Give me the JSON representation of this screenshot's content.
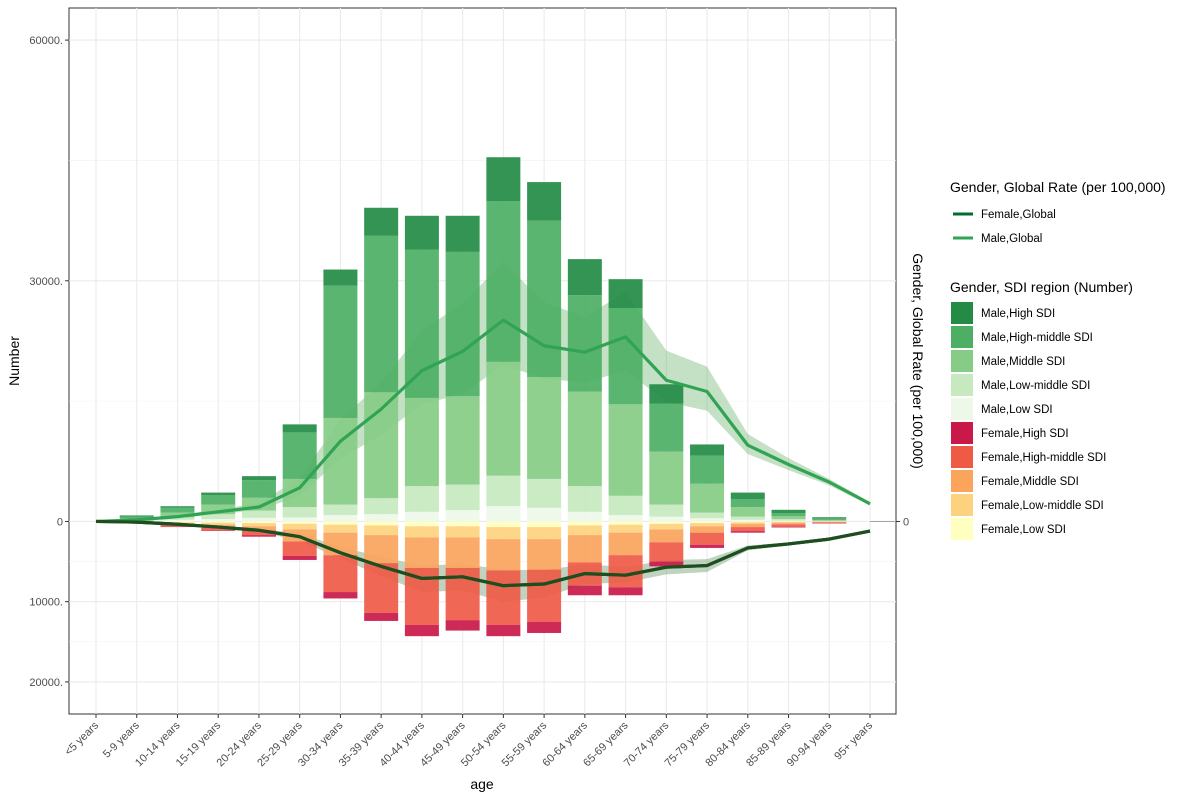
{
  "chart_data": {
    "type": "bar",
    "categories": [
      "<5 years",
      "5-9 years",
      "10-14 years",
      "15-19 years",
      "20-24 years",
      "25-29 years",
      "30-34 years",
      "35-39 years",
      "40-44 years",
      "45-49 years",
      "50-54 years",
      "55-59 years",
      "60-64 years",
      "65-69 years",
      "70-74 years",
      "75-79 years",
      "80-84 years",
      "85-89 years",
      "90-94 years",
      "95+ years"
    ],
    "xlabel": "age",
    "ylabel": "Number",
    "ylabel_right": "Gender, Global Rate (per 100,000)",
    "ylim": [
      -24000,
      64000
    ],
    "y_ticks": [
      {
        "value": 60000,
        "label": "60000."
      },
      {
        "value": 30000,
        "label": "30000."
      },
      {
        "value": 0,
        "label": "0"
      },
      {
        "value": -10000,
        "label": "10000."
      },
      {
        "value": -20000,
        "label": "20000."
      }
    ],
    "right_ticks": [
      {
        "value": 0,
        "label": "0"
      }
    ],
    "grid": true,
    "stack_series": [
      {
        "name": "Male,High SDI",
        "color": "#238b45",
        "sign": 1,
        "values": [
          0,
          150,
          200,
          300,
          500,
          1000,
          2000,
          3500,
          4200,
          4500,
          5500,
          4800,
          4500,
          3600,
          2400,
          1400,
          800,
          400,
          150,
          0
        ]
      },
      {
        "name": "Male,High-middle SDI",
        "color": "#4caf64",
        "sign": 1,
        "values": [
          0,
          250,
          600,
          1200,
          2200,
          5800,
          16500,
          19500,
          18500,
          18000,
          20000,
          19500,
          12000,
          12000,
          6000,
          3500,
          1000,
          400,
          200,
          0
        ]
      },
      {
        "name": "Male,Middle SDI",
        "color": "#86cc86",
        "sign": 1,
        "values": [
          0,
          200,
          600,
          1200,
          1600,
          3500,
          10800,
          13200,
          11000,
          11000,
          14200,
          12700,
          11800,
          11400,
          6600,
          3600,
          1200,
          350,
          100,
          0
        ]
      },
      {
        "name": "Male,Low-middle SDI",
        "color": "#c7e9c0",
        "sign": 1,
        "values": [
          0,
          100,
          300,
          600,
          900,
          1300,
          1300,
          2000,
          3200,
          3200,
          3800,
          3600,
          3200,
          2400,
          1500,
          700,
          400,
          200,
          50,
          0
        ]
      },
      {
        "name": "Male,Low SDI",
        "color": "#edf8e9",
        "sign": 1,
        "values": [
          0,
          50,
          200,
          300,
          450,
          500,
          800,
          900,
          1200,
          1400,
          1900,
          1700,
          1200,
          800,
          600,
          400,
          200,
          100,
          30,
          0
        ]
      },
      {
        "name": "Female,High SDI",
        "color": "#c9184a",
        "sign": -1,
        "values": [
          0,
          20,
          50,
          80,
          200,
          500,
          800,
          1000,
          1400,
          1300,
          1400,
          1400,
          1200,
          1000,
          600,
          400,
          200,
          100,
          50,
          0
        ]
      },
      {
        "name": "Female,High-middle SDI",
        "color": "#ef5a47",
        "sign": -1,
        "values": [
          0,
          40,
          200,
          400,
          600,
          1800,
          4600,
          6200,
          7100,
          6500,
          6800,
          6500,
          2900,
          4000,
          2400,
          1500,
          500,
          300,
          100,
          0
        ]
      },
      {
        "name": "Female,Middle SDI",
        "color": "#fba45c",
        "sign": -1,
        "values": [
          0,
          40,
          200,
          300,
          500,
          1500,
          2800,
          3500,
          3800,
          3800,
          3900,
          3800,
          3400,
          2800,
          1600,
          800,
          400,
          200,
          50,
          0
        ]
      },
      {
        "name": "Female,Low-middle SDI",
        "color": "#fdd27f",
        "sign": -1,
        "values": [
          0,
          30,
          150,
          250,
          400,
          700,
          1000,
          1200,
          1400,
          1400,
          1500,
          1500,
          1200,
          1000,
          700,
          400,
          200,
          100,
          30,
          0
        ]
      },
      {
        "name": "Female,Low SDI",
        "color": "#ffffc0",
        "sign": -1,
        "values": [
          0,
          20,
          100,
          150,
          200,
          300,
          400,
          500,
          600,
          600,
          700,
          700,
          500,
          400,
          300,
          200,
          100,
          50,
          20,
          0
        ]
      }
    ],
    "rate_series": [
      {
        "name": "Female,Global",
        "color": "#006d2c",
        "values": [
          0,
          -80,
          -350,
          -700,
          -1100,
          -1900,
          -3900,
          -5600,
          -7100,
          -6900,
          -8000,
          -7800,
          -6500,
          -6700,
          -5700,
          -5500,
          -3300,
          -2800,
          -2200,
          -1200
        ],
        "lower": [
          0,
          -100,
          -420,
          -850,
          -1300,
          -2400,
          -4600,
          -6800,
          -8800,
          -8600,
          -10000,
          -9500,
          -7800,
          -7600,
          -6600,
          -6300,
          -3600,
          -3000,
          -2300,
          -1250
        ],
        "upper": [
          0,
          -60,
          -280,
          -550,
          -900,
          -1500,
          -3200,
          -4400,
          -5500,
          -5300,
          -6000,
          -6100,
          -5300,
          -5700,
          -4800,
          -4700,
          -3000,
          -2600,
          -2000,
          -1100
        ]
      },
      {
        "name": "Male,Global",
        "color": "#31a354",
        "values": [
          0,
          200,
          600,
          1200,
          1800,
          4200,
          10000,
          14000,
          18800,
          21200,
          25100,
          21900,
          21100,
          23000,
          17600,
          16200,
          9500,
          7100,
          4900,
          2200
        ],
        "lower": [
          0,
          150,
          450,
          900,
          1400,
          3200,
          7800,
          10800,
          14600,
          15900,
          19500,
          17800,
          17300,
          18800,
          14900,
          13800,
          8400,
          6400,
          4500,
          2000
        ],
        "upper": [
          0,
          260,
          780,
          1500,
          2300,
          5400,
          12700,
          17300,
          23800,
          27200,
          32300,
          27300,
          25500,
          28600,
          21300,
          19300,
          10900,
          7900,
          5300,
          2400
        ]
      }
    ],
    "legend_rate": {
      "title": "Gender, Global Rate (per 100,000)",
      "items": [
        "Female,Global",
        "Male,Global"
      ]
    },
    "legend_number": {
      "title": "Gender, SDI region (Number)",
      "items": [
        "Male,High SDI",
        "Male,High-middle SDI",
        "Male,Middle SDI",
        "Male,Low-middle SDI",
        "Male,Low SDI",
        "Female,High SDI",
        "Female,High-middle SDI",
        "Female,Middle SDI",
        "Female,Low-middle SDI",
        "Female,Low SDI"
      ]
    }
  }
}
